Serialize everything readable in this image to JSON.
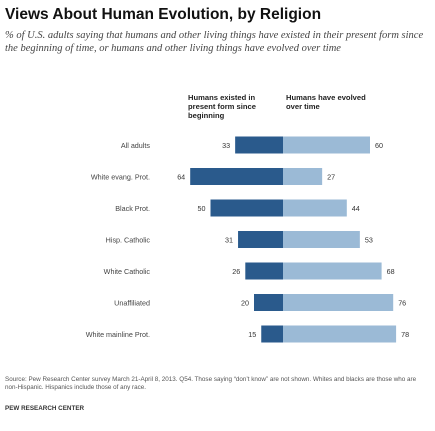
{
  "title": "Views About Human Evolution, by Religion",
  "subtitle": "% of U.S. adults saying that humans and other living things have existed in their present form since the beginning of time, or humans and other living things have evolved over time",
  "footnote": "Source: Pew Research Center survey March 21-April 8, 2013. Q54. Those saying “don’t know” are not shown. Whites and blacks are those who are non-Hispanic. Hispanics include those of any race.",
  "source": "PEW RESEARCH CENTER",
  "colors": {
    "existed": "#2a5a8c",
    "evolved": "#9bbad6"
  },
  "chart_data": {
    "type": "bar",
    "orientation": "horizontal-diverging",
    "categories": [
      "All adults",
      "White evang. Prot.",
      "Black Prot.",
      "Hisp. Catholic",
      "White Catholic",
      "Unaffiliated",
      "White mainline Prot."
    ],
    "series": [
      {
        "name": "Humans existed in present form since beginning",
        "values": [
          33,
          64,
          50,
          31,
          26,
          20,
          15
        ]
      },
      {
        "name": "Humans have evolved over time",
        "values": [
          60,
          27,
          44,
          53,
          68,
          76,
          78
        ]
      }
    ],
    "unit": "%"
  }
}
